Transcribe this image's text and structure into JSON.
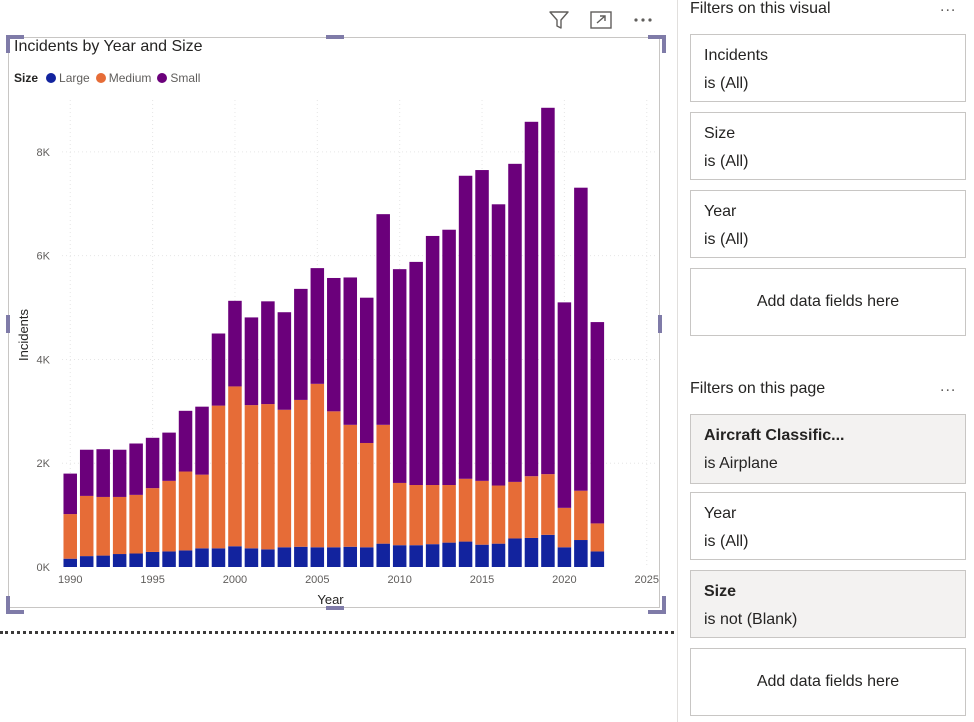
{
  "visual": {
    "toolbar": {
      "filter_icon": "filter-icon",
      "focus_icon": "focus-mode-icon",
      "more_icon": "more-options-icon"
    }
  },
  "chart_data": {
    "type": "bar",
    "stacked": true,
    "title": "Incidents by Year and Size",
    "legend_title": "Size",
    "legend_position": "top-left",
    "xlabel": "Year",
    "ylabel": "Incidents",
    "xlim": [
      1989.5,
      2025.5
    ],
    "ylim": [
      0,
      9000
    ],
    "x_ticks": [
      "1990",
      "1995",
      "2000",
      "2005",
      "2010",
      "2015",
      "2020",
      "2025"
    ],
    "x_tick_values": [
      1990,
      1995,
      2000,
      2005,
      2010,
      2015,
      2020,
      2025
    ],
    "y_ticks": [
      "0K",
      "2K",
      "4K",
      "6K",
      "8K"
    ],
    "y_tick_values": [
      0,
      2000,
      4000,
      6000,
      8000
    ],
    "grid": true,
    "x": [
      1990,
      1991,
      1992,
      1993,
      1994,
      1995,
      1996,
      1997,
      1998,
      1999,
      2000,
      2001,
      2002,
      2003,
      2004,
      2005,
      2006,
      2007,
      2008,
      2009,
      2010,
      2011,
      2012,
      2013,
      2014,
      2015,
      2016,
      2017,
      2018,
      2019,
      2020,
      2021,
      2022
    ],
    "series": [
      {
        "name": "Large",
        "color": "#12239e",
        "values": [
          160,
          210,
          220,
          250,
          260,
          290,
          300,
          320,
          360,
          360,
          400,
          360,
          340,
          380,
          390,
          380,
          380,
          390,
          380,
          450,
          420,
          420,
          440,
          470,
          490,
          430,
          450,
          550,
          560,
          620,
          380,
          520,
          300
        ]
      },
      {
        "name": "Medium",
        "color": "#e66c37",
        "values": [
          860,
          1160,
          1130,
          1100,
          1130,
          1230,
          1360,
          1520,
          1420,
          2750,
          3080,
          2760,
          2800,
          2650,
          2830,
          3150,
          2620,
          2350,
          2010,
          2290,
          1200,
          1160,
          1140,
          1110,
          1210,
          1230,
          1120,
          1090,
          1190,
          1170,
          760,
          950,
          540
        ]
      },
      {
        "name": "Small",
        "color": "#6b007b",
        "values": [
          780,
          890,
          920,
          910,
          990,
          970,
          930,
          1170,
          1310,
          1390,
          1650,
          1690,
          1980,
          1880,
          2140,
          2230,
          2570,
          2840,
          2800,
          4060,
          4120,
          4300,
          4800,
          4920,
          5840,
          5990,
          5420,
          6130,
          6830,
          7060,
          3960,
          5840,
          3880
        ]
      }
    ]
  },
  "filters_visual": {
    "header": "Filters on this visual",
    "more": "...",
    "cards": [
      {
        "name": "Incidents",
        "value": "is (All)"
      },
      {
        "name": "Size",
        "value": "is (All)"
      },
      {
        "name": "Year",
        "value": "is (All)"
      }
    ],
    "add_label": "Add data fields here"
  },
  "filters_page": {
    "header": "Filters on this page",
    "more": "...",
    "cards": [
      {
        "name": "Aircraft Classific...",
        "value": "is Airplane",
        "applied": true
      },
      {
        "name": "Year",
        "value": "is (All)",
        "applied": false
      },
      {
        "name": "Size",
        "value": "is not (Blank)",
        "applied": true
      }
    ],
    "add_label": "Add data fields here"
  }
}
